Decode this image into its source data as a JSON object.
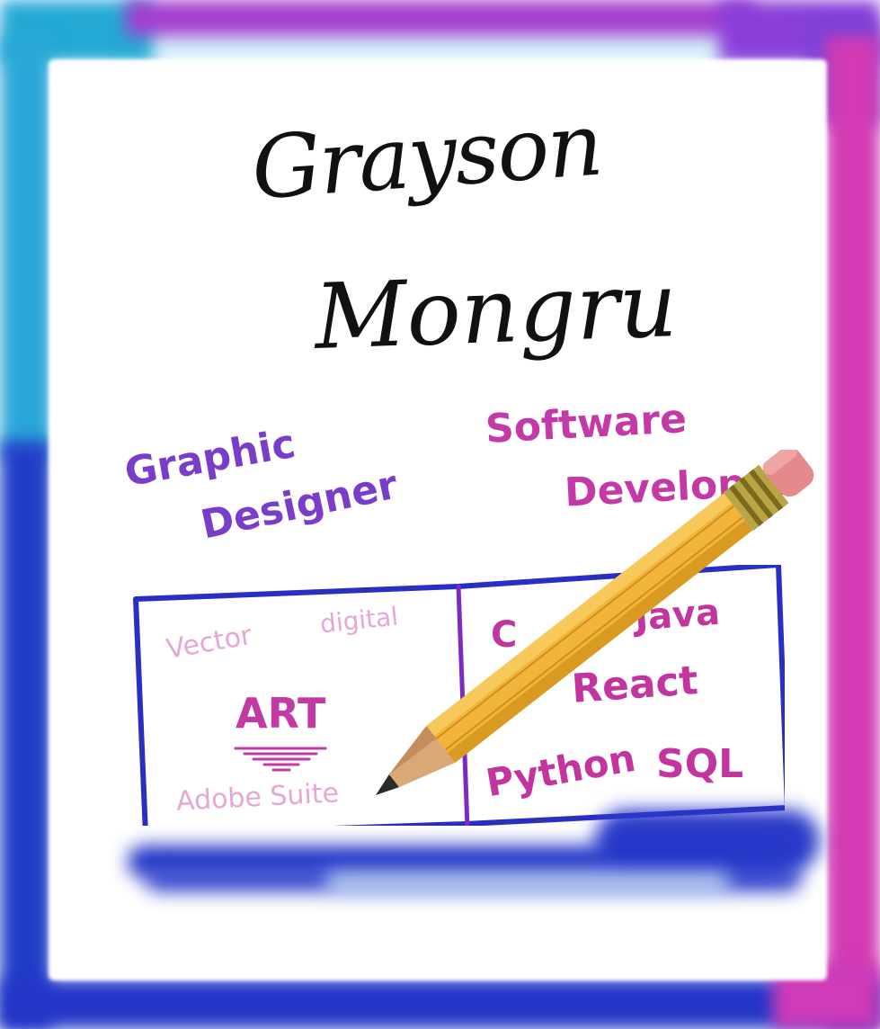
{
  "illustration": {
    "name": {
      "first": "Grayson",
      "last": "Mongru"
    },
    "roles": {
      "graphic_line1": "Graphic",
      "graphic_line2": "Designer",
      "software_line1": "Software",
      "software_line2": "Developer"
    },
    "art_column": {
      "vector": "Vector",
      "digital": "digital",
      "art": "ART",
      "adobe": "Adobe Suite"
    },
    "dev_column": {
      "c": "C",
      "java": "Java",
      "react": "React",
      "python": "Python",
      "sql": "SQL"
    },
    "icons": [
      "pencil-icon"
    ],
    "colors": {
      "frame_cyan": "#23a9d4",
      "frame_purple": "#a33fd0",
      "frame_blue": "#1f3ec8",
      "frame_magenta": "#d23bb3",
      "role_purple": "#7a3dc9",
      "role_pink": "#c33aa6",
      "table_border": "#2a2fc0",
      "table_divider": "#7a2bc4",
      "light_pink": "#e6a6d6",
      "pencil_yellow": "#f2b43a"
    }
  }
}
